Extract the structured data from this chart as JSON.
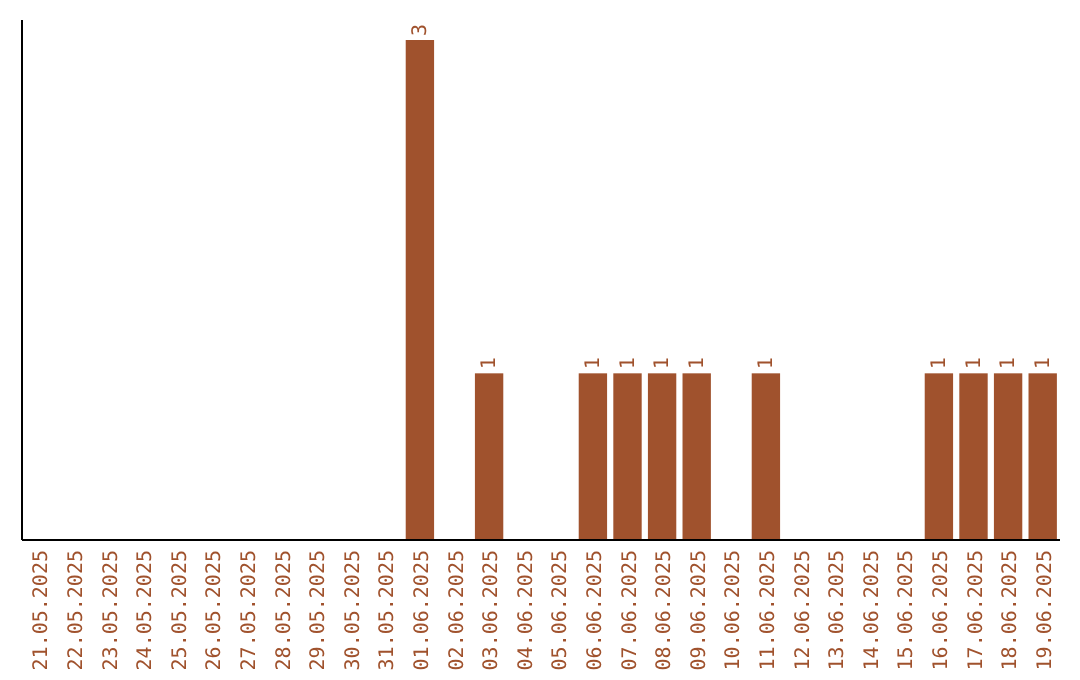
{
  "chart_data": {
    "type": "bar",
    "categories": [
      "21.05.2025",
      "22.05.2025",
      "23.05.2025",
      "24.05.2025",
      "25.05.2025",
      "26.05.2025",
      "27.05.2025",
      "28.05.2025",
      "29.05.2025",
      "30.05.2025",
      "31.05.2025",
      "01.06.2025",
      "02.06.2025",
      "03.06.2025",
      "04.06.2025",
      "05.06.2025",
      "06.06.2025",
      "07.06.2025",
      "08.06.2025",
      "09.06.2025",
      "10.06.2025",
      "11.06.2025",
      "12.06.2025",
      "13.06.2025",
      "14.06.2025",
      "15.06.2025",
      "16.06.2025",
      "17.06.2025",
      "18.06.2025",
      "19.06.2025"
    ],
    "values": [
      0,
      0,
      0,
      0,
      0,
      0,
      0,
      0,
      0,
      0,
      0,
      3,
      0,
      1,
      0,
      0,
      1,
      1,
      1,
      1,
      0,
      1,
      0,
      0,
      0,
      0,
      1,
      1,
      1,
      1
    ],
    "value_labels": [
      null,
      null,
      null,
      null,
      null,
      null,
      null,
      null,
      null,
      null,
      null,
      "3",
      null,
      "1",
      null,
      null,
      "1",
      "1",
      "1",
      "1",
      null,
      "1",
      null,
      null,
      null,
      null,
      "1",
      "1",
      "1",
      "1"
    ],
    "color": "#a0522d",
    "tick_labels": "x"
  }
}
